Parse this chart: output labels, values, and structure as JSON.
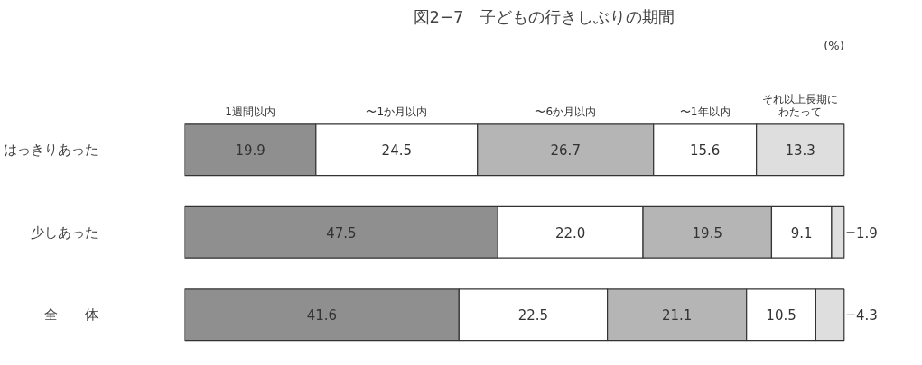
{
  "chart_data": {
    "type": "bar",
    "orientation": "horizontal",
    "stacked": true,
    "title": "図2−7　子どもの行きしぶりの期間",
    "annotations": [
      "(%)"
    ],
    "categories": [
      "はっきりあった",
      "少しあった",
      "全　　体"
    ],
    "series": [
      {
        "name": "1週間以内",
        "color": "#8f8f8f",
        "values": [
          19.9,
          47.5,
          41.6
        ],
        "value_labels": [
          "19.9",
          "47.5",
          "41.6"
        ]
      },
      {
        "name": "〜1か月以内",
        "color": "#ffffff",
        "values": [
          24.5,
          22.0,
          22.5
        ],
        "value_labels": [
          "24.5",
          "22.0",
          "22.5"
        ]
      },
      {
        "name": "〜6か月以内",
        "color": "#b5b5b5",
        "values": [
          26.7,
          19.5,
          21.1
        ],
        "value_labels": [
          "26.7",
          "19.5",
          "21.1"
        ]
      },
      {
        "name": "〜1年以内",
        "color": "#ffffff",
        "values": [
          15.6,
          9.1,
          10.5
        ],
        "value_labels": [
          "15.6",
          "9.1",
          "10.5"
        ]
      },
      {
        "name": "それ以上長期にわたって",
        "color": "#dedede",
        "values": [
          13.3,
          1.9,
          4.3
        ],
        "value_labels": [
          "13.3",
          "1.9",
          "4.3"
        ]
      }
    ],
    "xlim": [
      0,
      100
    ],
    "legend": false,
    "grid": false,
    "tick_labels": "y"
  }
}
